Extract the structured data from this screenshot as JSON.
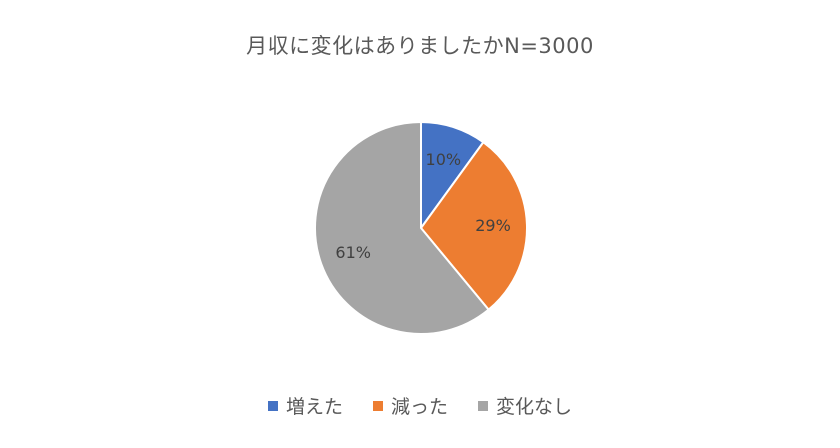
{
  "chart_data": {
    "type": "pie",
    "title": "月収に変化はありましたかN=3000",
    "categories": [
      "増えた",
      "減った",
      "変化なし"
    ],
    "values": [
      10,
      29,
      61
    ],
    "labels": [
      "10%",
      "29%",
      "61%"
    ],
    "colors": [
      "#4472C4",
      "#ED7D31",
      "#A5A5A5"
    ],
    "legend_position": "bottom"
  }
}
